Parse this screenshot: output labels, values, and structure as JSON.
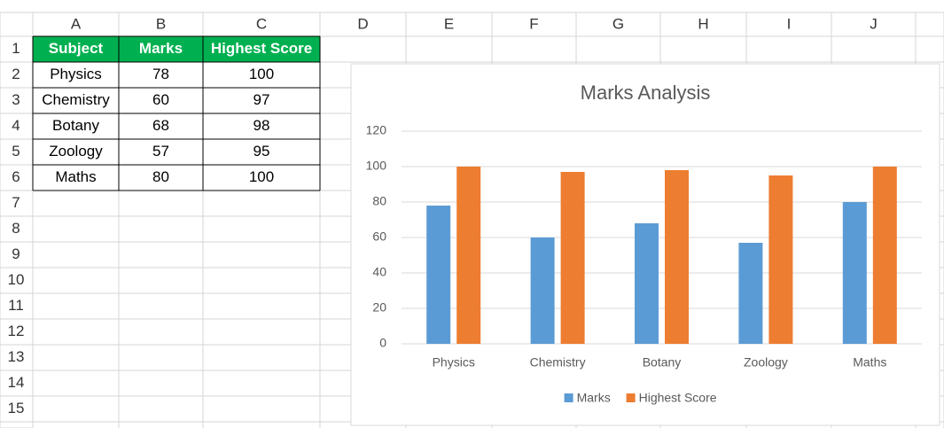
{
  "sheet": {
    "columns": [
      "A",
      "B",
      "C",
      "D",
      "E",
      "F",
      "G",
      "H",
      "I",
      "J"
    ],
    "rows": [
      1,
      2,
      3,
      4,
      5,
      6,
      7,
      8,
      9,
      10,
      11,
      12,
      13,
      14,
      15
    ],
    "table": {
      "header": [
        "Subject",
        "Marks",
        "Highest Score"
      ],
      "rows": [
        [
          "Physics",
          78,
          100
        ],
        [
          "Chemistry",
          60,
          97
        ],
        [
          "Botany",
          68,
          98
        ],
        [
          "Zoology",
          57,
          95
        ],
        [
          "Maths",
          80,
          100
        ]
      ]
    }
  },
  "chart_data": {
    "type": "bar",
    "title": "Marks Analysis",
    "categories": [
      "Physics",
      "Chemistry",
      "Botany",
      "Zoology",
      "Maths"
    ],
    "series": [
      {
        "name": "Marks",
        "color": "#5b9bd5",
        "values": [
          78,
          60,
          68,
          57,
          80
        ]
      },
      {
        "name": "Highest Score",
        "color": "#ed7d31",
        "values": [
          100,
          97,
          98,
          95,
          100
        ]
      }
    ],
    "ylim": [
      0,
      120
    ],
    "yticks": [
      0,
      20,
      40,
      60,
      80,
      100,
      120
    ],
    "grid": true,
    "legend": "bottom"
  }
}
